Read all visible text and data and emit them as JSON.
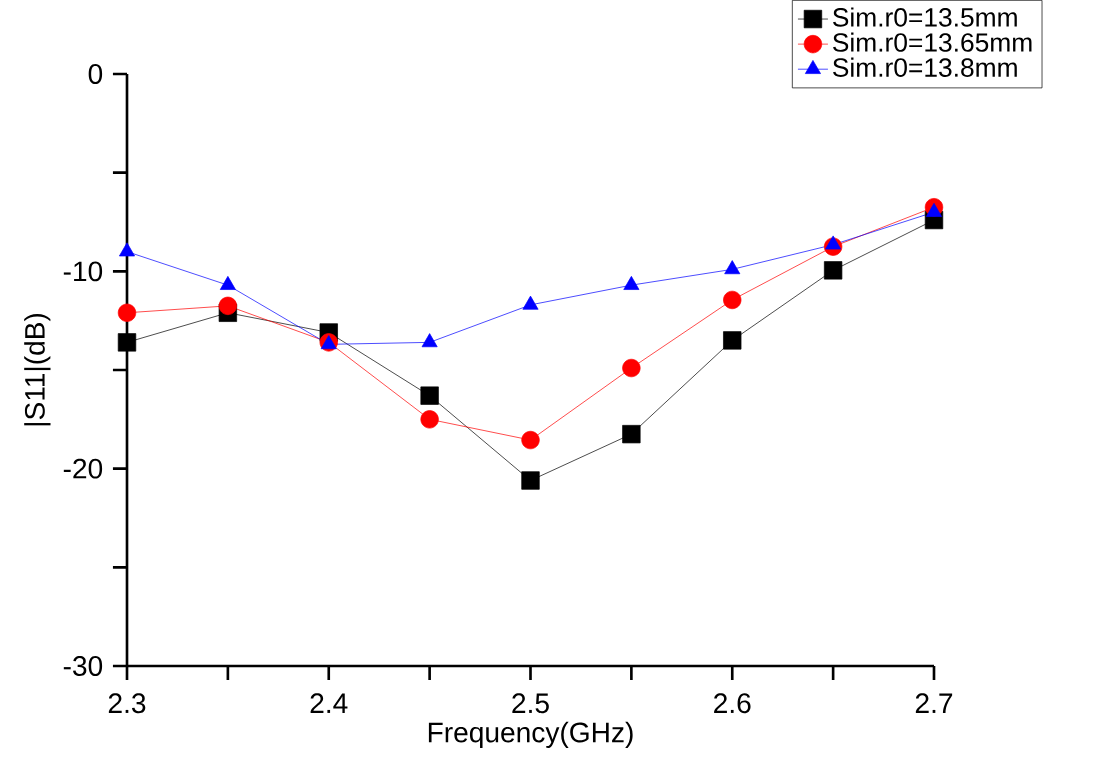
{
  "chart_data": {
    "type": "line",
    "xlabel": "Frequency(GHz)",
    "ylabel": "|S11|(dB)",
    "x": [
      2.3,
      2.35,
      2.4,
      2.45,
      2.5,
      2.55,
      2.6,
      2.65,
      2.7
    ],
    "series": [
      {
        "name": "Sim.r0=13.5mm",
        "color": "#000000",
        "marker": "square",
        "values": [
          -13.6,
          -12.1,
          -13.1,
          -16.3,
          -20.6,
          -18.25,
          -13.5,
          -9.95,
          -7.4
        ]
      },
      {
        "name": "Sim.r0=13.65mm",
        "color": "#ff0000",
        "marker": "circle",
        "values": [
          -12.1,
          -11.75,
          -13.6,
          -17.5,
          -18.55,
          -14.9,
          -11.45,
          -8.75,
          -6.75
        ]
      },
      {
        "name": "Sim.r0=13.8mm",
        "color": "#0000ff",
        "marker": "triangle",
        "values": [
          -9.0,
          -10.7,
          -13.7,
          -13.6,
          -11.7,
          -10.7,
          -9.9,
          -8.65,
          -7.0
        ]
      }
    ],
    "xlim": [
      2.3,
      2.7
    ],
    "ylim": [
      -30,
      0
    ],
    "xticks": [
      2.3,
      {
        "value": 2.35,
        "label": null
      },
      2.4,
      {
        "value": 2.45,
        "label": null
      },
      2.5,
      {
        "value": 2.55,
        "label": null
      },
      2.6,
      {
        "value": 2.65,
        "label": null
      },
      2.7
    ],
    "yticks": [
      -30,
      {
        "value": -25,
        "label": null
      },
      -20,
      {
        "value": -15,
        "label": null
      },
      -10,
      {
        "value": -5,
        "label": null
      },
      0
    ],
    "legend": "top right",
    "line_style": "solid"
  }
}
